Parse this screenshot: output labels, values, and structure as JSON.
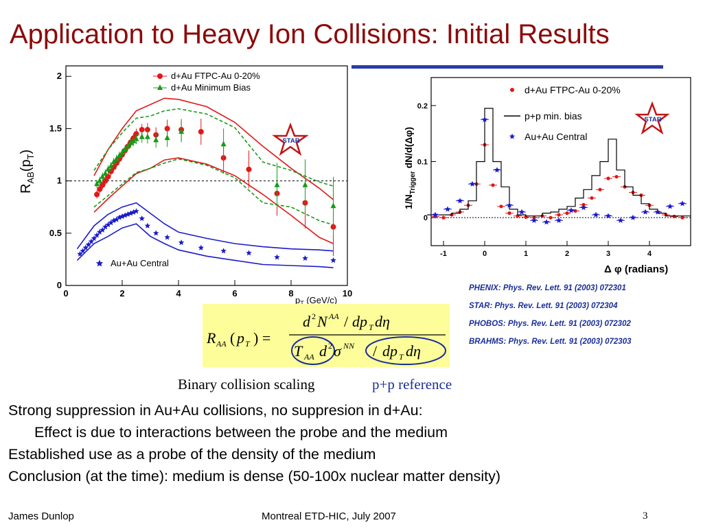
{
  "slide": {
    "title": "Application to Heavy Ion Collisions: Initial Results",
    "references": [
      "PHENIX: Phys. Rev. Lett. 91 (2003) 072301",
      "STAR: Phys. Rev. Lett. 91 (2003) 072304",
      "PHOBOS: Phys. Rev. Lett. 91 (2003) 072302",
      "BRAHMS: Phys. Rev. Lett. 91 (2003) 072303"
    ],
    "formula_labels": {
      "binary": "Binary collision scaling",
      "pp_ref": "p+p reference"
    },
    "bullets": [
      {
        "text": "Strong suppression in Au+Au collisions, no suppresion in d+Au:",
        "indent": false
      },
      {
        "text": "Effect is due to interactions between the probe and the medium",
        "indent": true
      },
      {
        "text": "Established use as a probe of the density of the medium",
        "indent": false
      },
      {
        "text": "Conclusion (at the time): medium is dense (50-100x nuclear matter density)",
        "indent": false
      }
    ],
    "footer": {
      "author": "James Dunlop",
      "event": "Montreal ETD-HIC, July 2007",
      "page": "3"
    },
    "logo_text": "STAR",
    "colors": {
      "title": "#8b0a0a",
      "refs": "#1a2f9a",
      "formula_bg": "#fdfd9a",
      "rule": "#2a3ca8",
      "red": "#e01818",
      "green": "#189a18",
      "blue": "#1a1acc"
    }
  },
  "chart_data": [
    {
      "type": "scatter",
      "ylabel": "R_AB(p_T)",
      "xlabel": "p_T (GeV/c)",
      "xlim": [
        0,
        10
      ],
      "ylim": [
        0,
        2.1
      ],
      "xticks": [
        0,
        2,
        4,
        6,
        8,
        10
      ],
      "yticks": [
        0,
        0.5,
        1,
        1.5,
        2
      ],
      "xtick_labels": [
        "0",
        "2",
        "4",
        "6",
        "8",
        "10"
      ],
      "ytick_labels": [
        "0",
        "0.5",
        "1",
        "1.5",
        "2"
      ],
      "reference_line": 1,
      "series": [
        {
          "name": "d+Au FTPC-Au 0-20%",
          "marker": "circle",
          "color": "#e01818",
          "x": [
            1.1,
            1.2,
            1.3,
            1.4,
            1.5,
            1.6,
            1.7,
            1.8,
            1.9,
            2.0,
            2.1,
            2.2,
            2.3,
            2.4,
            2.5,
            2.7,
            2.9,
            3.2,
            3.6,
            4.1,
            4.8,
            5.6,
            6.5,
            7.5,
            8.5,
            9.5
          ],
          "y": [
            0.87,
            0.92,
            0.96,
            1.0,
            1.04,
            1.09,
            1.13,
            1.17,
            1.21,
            1.25,
            1.29,
            1.33,
            1.37,
            1.41,
            1.45,
            1.49,
            1.49,
            1.44,
            1.5,
            1.49,
            1.47,
            1.22,
            1.11,
            0.88,
            0.79,
            0.56
          ]
        },
        {
          "name": "d+Au Minimum Bias",
          "marker": "triangle",
          "color": "#189a18",
          "x": [
            1.1,
            1.2,
            1.3,
            1.4,
            1.5,
            1.6,
            1.7,
            1.8,
            1.9,
            2.0,
            2.1,
            2.2,
            2.3,
            2.4,
            2.5,
            2.7,
            2.9,
            3.2,
            3.6,
            4.1,
            5.6,
            7.5,
            8.5,
            9.5
          ],
          "y": [
            0.97,
            1.0,
            1.04,
            1.07,
            1.11,
            1.14,
            1.18,
            1.21,
            1.24,
            1.27,
            1.3,
            1.33,
            1.36,
            1.38,
            1.4,
            1.42,
            1.42,
            1.39,
            1.41,
            1.47,
            1.35,
            0.96,
            0.96,
            0.76
          ]
        },
        {
          "name": "Au+Au Central",
          "marker": "star",
          "color": "#1a1acc",
          "x": [
            0.5,
            0.6,
            0.7,
            0.8,
            0.9,
            1.0,
            1.1,
            1.2,
            1.3,
            1.4,
            1.5,
            1.6,
            1.7,
            1.8,
            1.9,
            2.0,
            2.1,
            2.2,
            2.3,
            2.4,
            2.5,
            2.7,
            2.9,
            3.2,
            3.6,
            4.1,
            4.8,
            5.6,
            6.5,
            7.5,
            8.5,
            9.5
          ],
          "y": [
            0.3,
            0.33,
            0.36,
            0.39,
            0.42,
            0.45,
            0.48,
            0.51,
            0.53,
            0.56,
            0.58,
            0.6,
            0.62,
            0.63,
            0.65,
            0.66,
            0.67,
            0.68,
            0.69,
            0.7,
            0.71,
            0.64,
            0.57,
            0.5,
            0.46,
            0.41,
            0.36,
            0.33,
            0.31,
            0.27,
            0.26,
            0.24
          ]
        }
      ],
      "bands": [
        {
          "color": "#e01818",
          "style": "solid",
          "x": [
            1.0,
            1.5,
            2.0,
            2.5,
            3.0,
            3.5,
            4.0,
            5.0,
            6.0,
            7.0,
            8.0,
            9.0,
            9.5
          ],
          "upper": [
            1.05,
            1.3,
            1.5,
            1.67,
            1.73,
            1.79,
            1.78,
            1.71,
            1.56,
            1.33,
            1.12,
            0.93,
            0.82
          ],
          "lower": [
            0.7,
            0.83,
            0.95,
            1.07,
            1.12,
            1.2,
            1.22,
            1.16,
            1.05,
            0.87,
            0.67,
            0.46,
            0.4
          ]
        },
        {
          "color": "#189a18",
          "style": "dashed",
          "x": [
            1.0,
            1.5,
            2.0,
            2.5,
            3.0,
            3.5,
            4.0,
            5.0,
            6.0,
            7.0,
            8.0,
            9.0,
            9.5
          ],
          "upper": [
            1.1,
            1.3,
            1.46,
            1.6,
            1.62,
            1.67,
            1.69,
            1.64,
            1.51,
            1.18,
            1.1,
            0.99,
            0.95
          ],
          "lower": [
            0.75,
            0.86,
            0.97,
            1.08,
            1.12,
            1.17,
            1.21,
            1.15,
            1.03,
            0.79,
            0.75,
            0.62,
            0.58
          ]
        },
        {
          "color": "#1a1acc",
          "style": "solid",
          "x": [
            0.4,
            1.0,
            1.5,
            2.0,
            2.5,
            3.0,
            3.5,
            4.0,
            5.0,
            6.0,
            7.0,
            8.0,
            9.0,
            9.5
          ],
          "upper": [
            0.35,
            0.57,
            0.68,
            0.75,
            0.79,
            0.69,
            0.59,
            0.51,
            0.45,
            0.4,
            0.37,
            0.35,
            0.34,
            0.33
          ],
          "lower": [
            0.24,
            0.4,
            0.47,
            0.55,
            0.59,
            0.47,
            0.4,
            0.34,
            0.28,
            0.24,
            0.2,
            0.19,
            0.18,
            0.17
          ]
        }
      ]
    },
    {
      "type": "scatter",
      "ylabel": "1/N_Trigger dN/d(Δφ)",
      "xlabel": "Δ φ (radians)",
      "xlim": [
        -1.3,
        5.0
      ],
      "ylim": [
        -0.05,
        0.25
      ],
      "xticks": [
        -1,
        0,
        1,
        2,
        3,
        4
      ],
      "yticks": [
        0,
        0.1,
        0.2
      ],
      "xtick_labels": [
        "-1",
        "0",
        "1",
        "2",
        "3",
        "4"
      ],
      "ytick_labels": [
        "0",
        "0.1",
        "0.2"
      ],
      "reference_line": 0,
      "series": [
        {
          "name": "d+Au FTPC-Au 0-20%",
          "marker": "circle",
          "color": "#e01818",
          "x": [
            -1.2,
            -1.0,
            -0.8,
            -0.6,
            -0.4,
            -0.2,
            0.0,
            0.2,
            0.4,
            0.6,
            0.8,
            1.0,
            1.2,
            1.4,
            1.6,
            1.8,
            2.0,
            2.2,
            2.4,
            2.6,
            2.8,
            3.0,
            3.2,
            3.4,
            3.6,
            3.8,
            4.0,
            4.2,
            4.4,
            4.6,
            4.8
          ],
          "y": [
            0.002,
            0.0,
            0.005,
            0.01,
            0.022,
            0.06,
            0.13,
            0.058,
            0.02,
            0.008,
            0.003,
            0.001,
            0.0,
            0.003,
            0.0,
            0.005,
            0.008,
            0.012,
            0.023,
            0.035,
            0.05,
            0.07,
            0.073,
            0.055,
            0.045,
            0.04,
            0.022,
            0.01,
            0.005,
            0.002,
            0.0
          ]
        },
        {
          "name": "p+p min. bias",
          "marker": "step",
          "color": "#000000",
          "x": [
            -1.3,
            -1.1,
            -0.9,
            -0.7,
            -0.5,
            -0.3,
            -0.1,
            0.1,
            0.3,
            0.5,
            0.7,
            0.9,
            1.1,
            1.3,
            1.5,
            1.7,
            1.9,
            2.1,
            2.3,
            2.5,
            2.7,
            2.9,
            3.1,
            3.3,
            3.5,
            3.7,
            3.9,
            4.1,
            4.3,
            4.5,
            4.7,
            4.9
          ],
          "y": [
            0.005,
            0.005,
            0.005,
            0.008,
            0.015,
            0.03,
            0.1,
            0.195,
            0.1,
            0.055,
            0.015,
            0.005,
            0.003,
            0.003,
            0.008,
            0.01,
            0.015,
            0.02,
            0.035,
            0.05,
            0.075,
            0.1,
            0.14,
            0.085,
            0.055,
            0.04,
            0.025,
            0.015,
            0.008,
            0.003,
            0.003,
            0.003
          ]
        },
        {
          "name": "Au+Au Central",
          "marker": "star",
          "color": "#1a1acc",
          "x": [
            -1.2,
            -0.9,
            -0.6,
            -0.3,
            0.0,
            0.3,
            0.6,
            0.9,
            1.2,
            1.5,
            1.8,
            2.1,
            2.4,
            2.7,
            3.0,
            3.3,
            3.6,
            3.9,
            4.2,
            4.5,
            4.8
          ],
          "y": [
            0.005,
            0.015,
            0.03,
            0.06,
            0.175,
            0.085,
            0.022,
            0.01,
            -0.005,
            -0.008,
            -0.005,
            0.013,
            0.018,
            0.005,
            0.003,
            -0.005,
            0.0,
            0.01,
            0.01,
            0.02,
            0.025
          ]
        }
      ]
    }
  ]
}
